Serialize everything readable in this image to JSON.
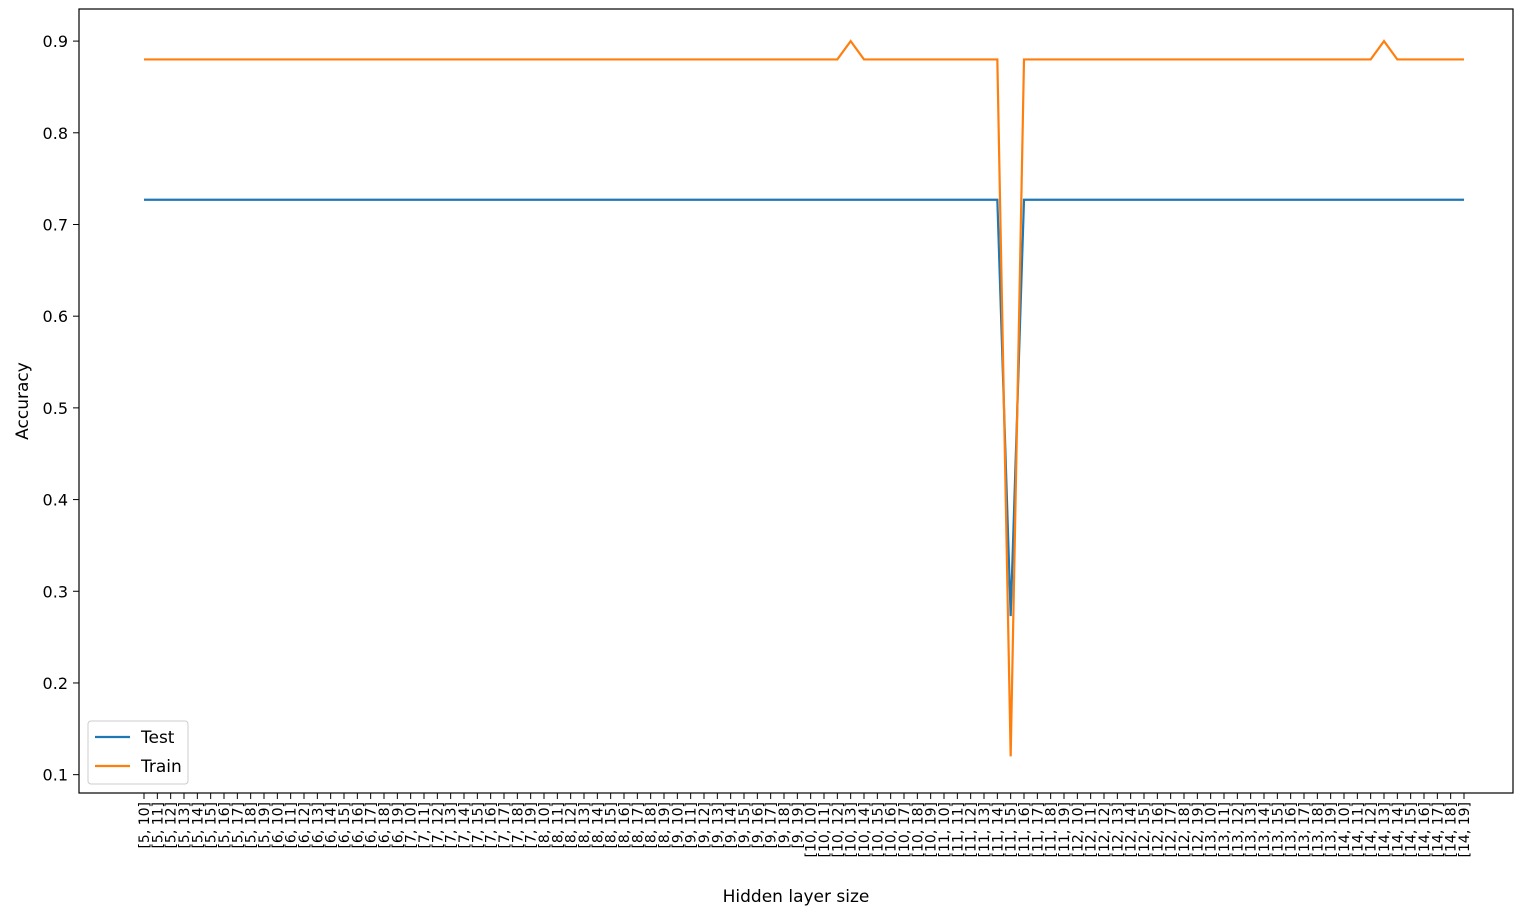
{
  "chart_data": {
    "type": "line",
    "xlabel": "Hidden layer size",
    "ylabel": "Accuracy",
    "ylim": [
      0.08,
      0.935
    ],
    "yticks": [
      0.1,
      0.2,
      0.3,
      0.4,
      0.5,
      0.6,
      0.7,
      0.8,
      0.9
    ],
    "ytick_labels": [
      "0.1",
      "0.2",
      "0.3",
      "0.4",
      "0.5",
      "0.6",
      "0.7",
      "0.8",
      "0.9"
    ],
    "categories": [
      "[5, 10]",
      "[5, 11]",
      "[5, 12]",
      "[5, 13]",
      "[5, 14]",
      "[5, 15]",
      "[5, 16]",
      "[5, 17]",
      "[5, 18]",
      "[5, 19]",
      "[6, 10]",
      "[6, 11]",
      "[6, 12]",
      "[6, 13]",
      "[6, 14]",
      "[6, 15]",
      "[6, 16]",
      "[6, 17]",
      "[6, 18]",
      "[6, 19]",
      "[7, 10]",
      "[7, 11]",
      "[7, 12]",
      "[7, 13]",
      "[7, 14]",
      "[7, 15]",
      "[7, 16]",
      "[7, 17]",
      "[7, 18]",
      "[7, 19]",
      "[8, 10]",
      "[8, 11]",
      "[8, 12]",
      "[8, 13]",
      "[8, 14]",
      "[8, 15]",
      "[8, 16]",
      "[8, 17]",
      "[8, 18]",
      "[8, 19]",
      "[9, 10]",
      "[9, 11]",
      "[9, 12]",
      "[9, 13]",
      "[9, 14]",
      "[9, 15]",
      "[9, 16]",
      "[9, 17]",
      "[9, 18]",
      "[9, 19]",
      "[10, 10]",
      "[10, 11]",
      "[10, 12]",
      "[10, 13]",
      "[10, 14]",
      "[10, 15]",
      "[10, 16]",
      "[10, 17]",
      "[10, 18]",
      "[10, 19]",
      "[11, 10]",
      "[11, 11]",
      "[11, 12]",
      "[11, 13]",
      "[11, 14]",
      "[11, 15]",
      "[11, 16]",
      "[11, 17]",
      "[11, 18]",
      "[11, 19]",
      "[12, 10]",
      "[12, 11]",
      "[12, 12]",
      "[12, 13]",
      "[12, 14]",
      "[12, 15]",
      "[12, 16]",
      "[12, 17]",
      "[12, 18]",
      "[12, 19]",
      "[13, 10]",
      "[13, 11]",
      "[13, 12]",
      "[13, 13]",
      "[13, 14]",
      "[13, 15]",
      "[13, 16]",
      "[13, 17]",
      "[13, 18]",
      "[13, 19]",
      "[14, 10]",
      "[14, 11]",
      "[14, 12]",
      "[14, 13]",
      "[14, 14]",
      "[14, 15]",
      "[14, 16]",
      "[14, 17]",
      "[14, 18]",
      "[14, 19]"
    ],
    "series": [
      {
        "name": "Test",
        "color": "#1f77b4",
        "values": [
          0.727,
          0.727,
          0.727,
          0.727,
          0.727,
          0.727,
          0.727,
          0.727,
          0.727,
          0.727,
          0.727,
          0.727,
          0.727,
          0.727,
          0.727,
          0.727,
          0.727,
          0.727,
          0.727,
          0.727,
          0.727,
          0.727,
          0.727,
          0.727,
          0.727,
          0.727,
          0.727,
          0.727,
          0.727,
          0.727,
          0.727,
          0.727,
          0.727,
          0.727,
          0.727,
          0.727,
          0.727,
          0.727,
          0.727,
          0.727,
          0.727,
          0.727,
          0.727,
          0.727,
          0.727,
          0.727,
          0.727,
          0.727,
          0.727,
          0.727,
          0.727,
          0.727,
          0.727,
          0.727,
          0.727,
          0.727,
          0.727,
          0.727,
          0.727,
          0.727,
          0.727,
          0.727,
          0.727,
          0.727,
          0.727,
          0.273,
          0.727,
          0.727,
          0.727,
          0.727,
          0.727,
          0.727,
          0.727,
          0.727,
          0.727,
          0.727,
          0.727,
          0.727,
          0.727,
          0.727,
          0.727,
          0.727,
          0.727,
          0.727,
          0.727,
          0.727,
          0.727,
          0.727,
          0.727,
          0.727,
          0.727,
          0.727,
          0.727,
          0.727,
          0.727,
          0.727,
          0.727,
          0.727,
          0.727,
          0.727
        ]
      },
      {
        "name": "Train",
        "color": "#ff7f0e",
        "values": [
          0.88,
          0.88,
          0.88,
          0.88,
          0.88,
          0.88,
          0.88,
          0.88,
          0.88,
          0.88,
          0.88,
          0.88,
          0.88,
          0.88,
          0.88,
          0.88,
          0.88,
          0.88,
          0.88,
          0.88,
          0.88,
          0.88,
          0.88,
          0.88,
          0.88,
          0.88,
          0.88,
          0.88,
          0.88,
          0.88,
          0.88,
          0.88,
          0.88,
          0.88,
          0.88,
          0.88,
          0.88,
          0.88,
          0.88,
          0.88,
          0.88,
          0.88,
          0.88,
          0.88,
          0.88,
          0.88,
          0.88,
          0.88,
          0.88,
          0.88,
          0.88,
          0.88,
          0.88,
          0.9,
          0.88,
          0.88,
          0.88,
          0.88,
          0.88,
          0.88,
          0.88,
          0.88,
          0.88,
          0.88,
          0.88,
          0.12,
          0.88,
          0.88,
          0.88,
          0.88,
          0.88,
          0.88,
          0.88,
          0.88,
          0.88,
          0.88,
          0.88,
          0.88,
          0.88,
          0.88,
          0.88,
          0.88,
          0.88,
          0.88,
          0.88,
          0.88,
          0.88,
          0.88,
          0.88,
          0.88,
          0.88,
          0.88,
          0.88,
          0.9,
          0.88,
          0.88,
          0.88,
          0.88,
          0.88,
          0.88
        ]
      }
    ],
    "legend": {
      "position": "lower-left",
      "entries": [
        "Test",
        "Train"
      ]
    },
    "grid": false
  }
}
